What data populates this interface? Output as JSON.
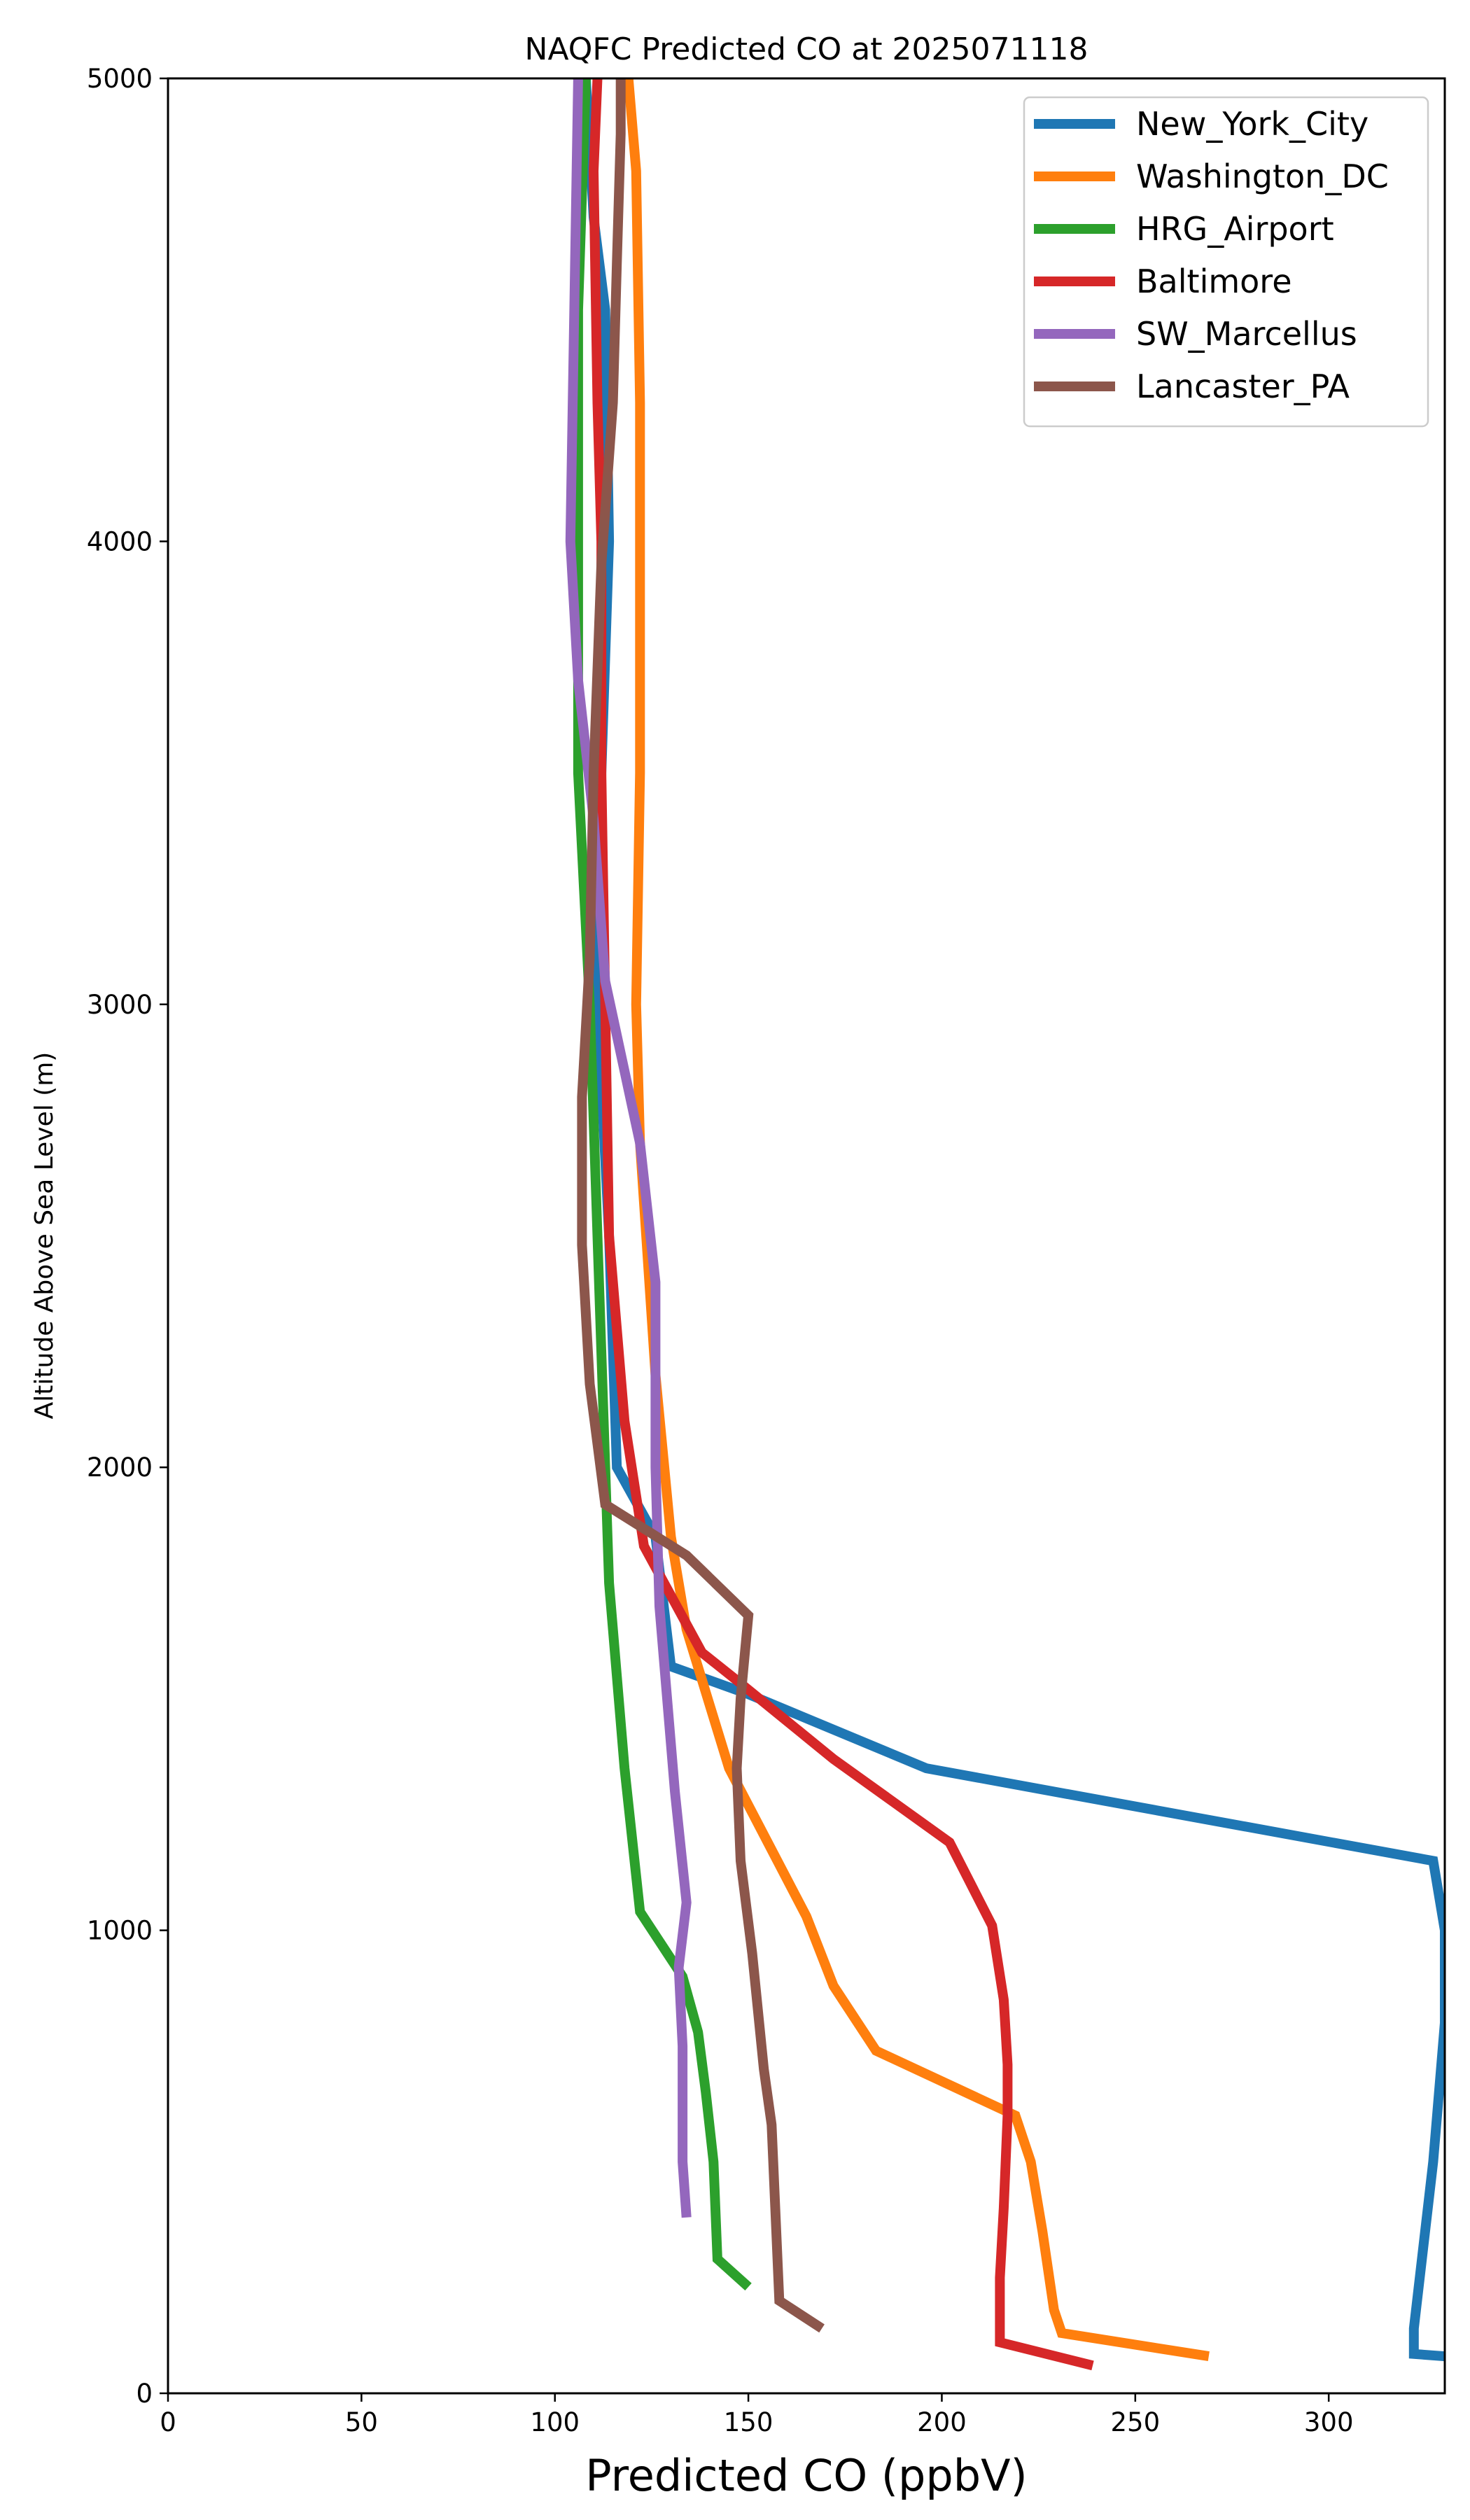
{
  "chart_data": {
    "type": "line",
    "title": "NAQFC Predicted CO at 2025071118",
    "xlabel": "Predicted CO (ppbV)",
    "ylabel": "Altitude Above Sea Level (m)",
    "xlim": [
      0,
      330
    ],
    "ylim": [
      0,
      5000
    ],
    "xticks": [
      0,
      50,
      100,
      150,
      200,
      250,
      300
    ],
    "yticks": [
      0,
      1000,
      2000,
      3000,
      4000,
      5000
    ],
    "grid": false,
    "legend_position": "top-right",
    "series": [
      {
        "name": "New_York_City",
        "color": "#1f77b4",
        "points": [
          [
            330,
            80
          ],
          [
            322,
            85
          ],
          [
            322,
            140
          ],
          [
            327,
            500
          ],
          [
            330,
            800
          ],
          [
            330,
            1000
          ],
          [
            327,
            1150
          ],
          [
            196,
            1350
          ],
          [
            150,
            1510
          ],
          [
            130,
            1570
          ],
          [
            126,
            1850
          ],
          [
            116,
            2000
          ],
          [
            114,
            2500
          ],
          [
            111,
            3000
          ],
          [
            112,
            3500
          ],
          [
            114,
            4000
          ],
          [
            113,
            4500
          ],
          [
            110,
            4700
          ],
          [
            108,
            5000
          ]
        ]
      },
      {
        "name": "Washington_DC",
        "color": "#ff7f0e",
        "points": [
          [
            269,
            80
          ],
          [
            231,
            130
          ],
          [
            229,
            180
          ],
          [
            226,
            350
          ],
          [
            223,
            500
          ],
          [
            219,
            600
          ],
          [
            183,
            740
          ],
          [
            172,
            880
          ],
          [
            165,
            1030
          ],
          [
            145,
            1350
          ],
          [
            134,
            1650
          ],
          [
            130,
            1850
          ],
          [
            126,
            2200
          ],
          [
            122,
            2700
          ],
          [
            121,
            3000
          ],
          [
            122,
            3500
          ],
          [
            122,
            4000
          ],
          [
            122,
            4300
          ],
          [
            121,
            4800
          ],
          [
            119,
            5000
          ]
        ]
      },
      {
        "name": "HRG_Airport",
        "color": "#2ca02c",
        "points": [
          [
            150,
            230
          ],
          [
            142,
            290
          ],
          [
            141,
            500
          ],
          [
            139,
            650
          ],
          [
            137,
            780
          ],
          [
            133,
            900
          ],
          [
            122,
            1040
          ],
          [
            118,
            1350
          ],
          [
            114,
            1750
          ],
          [
            113,
            2000
          ],
          [
            111,
            2500
          ],
          [
            109,
            3000
          ],
          [
            106,
            3500
          ],
          [
            106,
            4000
          ],
          [
            106,
            4500
          ],
          [
            108,
            5000
          ]
        ]
      },
      {
        "name": "Baltimore",
        "color": "#d62728",
        "points": [
          [
            239,
            60
          ],
          [
            215,
            110
          ],
          [
            215,
            250
          ],
          [
            216,
            400
          ],
          [
            217,
            600
          ],
          [
            217,
            710
          ],
          [
            216,
            850
          ],
          [
            213,
            1010
          ],
          [
            202,
            1190
          ],
          [
            172,
            1370
          ],
          [
            147,
            1540
          ],
          [
            138,
            1600
          ],
          [
            123,
            1830
          ],
          [
            118,
            2100
          ],
          [
            114,
            2500
          ],
          [
            113,
            3000
          ],
          [
            112,
            3500
          ],
          [
            112,
            4000
          ],
          [
            111,
            4300
          ],
          [
            110,
            4800
          ],
          [
            111,
            5000
          ]
        ]
      },
      {
        "name": "SW_Marcellus",
        "color": "#9467bd",
        "points": [
          [
            134,
            380
          ],
          [
            133,
            500
          ],
          [
            133,
            750
          ],
          [
            132,
            920
          ],
          [
            134,
            1060
          ],
          [
            131,
            1300
          ],
          [
            127,
            1700
          ],
          [
            126,
            2000
          ],
          [
            126,
            2400
          ],
          [
            122,
            2700
          ],
          [
            113,
            3050
          ],
          [
            110,
            3400
          ],
          [
            106,
            3700
          ],
          [
            104,
            4000
          ],
          [
            105,
            4500
          ],
          [
            106,
            5000
          ]
        ]
      },
      {
        "name": "Lancaster_PA",
        "color": "#8c564b",
        "points": [
          [
            169,
            140
          ],
          [
            158,
            200
          ],
          [
            156,
            580
          ],
          [
            154,
            700
          ],
          [
            151,
            950
          ],
          [
            148,
            1150
          ],
          [
            147,
            1350
          ],
          [
            148,
            1500
          ],
          [
            150,
            1680
          ],
          [
            134,
            1810
          ],
          [
            113,
            1920
          ],
          [
            109,
            2180
          ],
          [
            107,
            2480
          ],
          [
            107,
            2800
          ],
          [
            109,
            3100
          ],
          [
            110,
            3500
          ],
          [
            112,
            3950
          ],
          [
            115,
            4300
          ],
          [
            116,
            4600
          ],
          [
            117,
            4880
          ],
          [
            117,
            5000
          ]
        ]
      }
    ]
  }
}
